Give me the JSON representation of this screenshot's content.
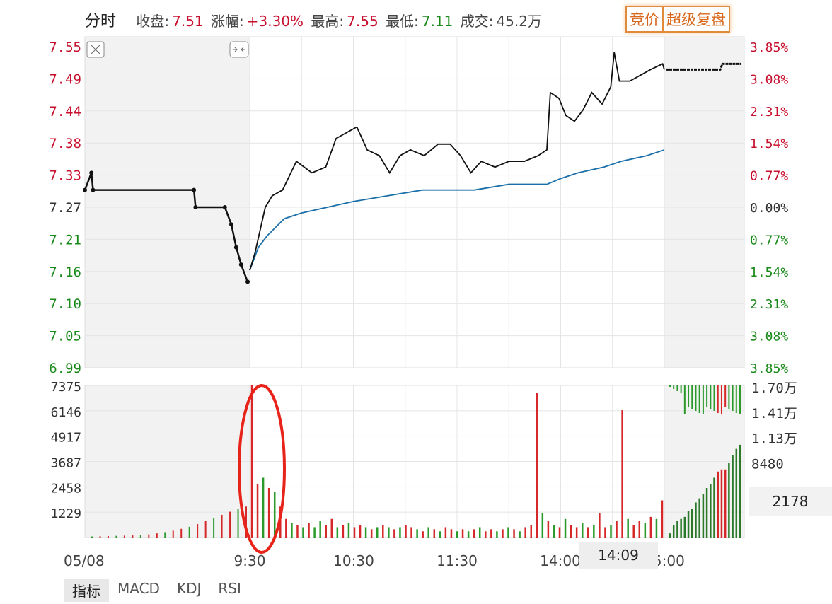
{
  "header": {
    "title": "分时",
    "close_label": "收盘:",
    "close": "7.51",
    "change_label": "涨幅:",
    "change": "+3.30%",
    "high_label": "最高:",
    "high": "7.55",
    "low_label": "最低:",
    "low": "7.11",
    "volume_label": "成交:",
    "volume": "45.2万"
  },
  "buttons": {
    "auction": "竞价",
    "replay": "超级复盘"
  },
  "tabs": [
    "指标",
    "MACD",
    "KDJ",
    "RSI"
  ],
  "cursor": {
    "time": "14:09",
    "value": "2178"
  },
  "colors": {
    "up": "#d62828",
    "down": "#2a9a2a",
    "price": "#111111",
    "avg": "#1a6fa8",
    "highlight": "#e8241a"
  },
  "chart_data": [
    {
      "type": "line",
      "title": "",
      "price_ticks_left": [
        "7.55",
        "7.49",
        "7.44",
        "7.38",
        "7.33",
        "7.27",
        "7.21",
        "7.16",
        "7.10",
        "7.05",
        "6.99"
      ],
      "pct_ticks_right": [
        "3.85%",
        "3.08%",
        "2.31%",
        "1.54%",
        "0.77%",
        "0.00%",
        "0.77%",
        "1.54%",
        "2.31%",
        "3.08%",
        "3.85%"
      ],
      "ylim": [
        6.99,
        7.55
      ],
      "prev_close": 7.27,
      "x_ticks": [
        "05/08",
        "9:30",
        "10:30",
        "11:30",
        "14:00",
        "15:00"
      ],
      "auction_price": {
        "pos": [
          0,
          0.04,
          0.05,
          0.67,
          0.68,
          0.86,
          0.9,
          0.93,
          0.96,
          1.0
        ],
        "values": [
          7.3,
          7.33,
          7.3,
          7.3,
          7.27,
          7.27,
          7.24,
          7.2,
          7.17,
          7.14
        ]
      },
      "price": {
        "minute": [
          0,
          3,
          9,
          13,
          19,
          27,
          36,
          44,
          50,
          56,
          62,
          68,
          75,
          81,
          87,
          93,
          101,
          109,
          116,
          122,
          128,
          134,
          142,
          150,
          159,
          167,
          172,
          174,
          179,
          183,
          188,
          193,
          198,
          204,
          209,
          211,
          214,
          220,
          226,
          232,
          239,
          240
        ],
        "values": [
          7.16,
          7.19,
          7.27,
          7.29,
          7.3,
          7.35,
          7.33,
          7.34,
          7.39,
          7.4,
          7.41,
          7.37,
          7.36,
          7.33,
          7.36,
          7.37,
          7.36,
          7.38,
          7.38,
          7.36,
          7.33,
          7.35,
          7.34,
          7.35,
          7.35,
          7.36,
          7.37,
          7.47,
          7.46,
          7.43,
          7.42,
          7.44,
          7.47,
          7.45,
          7.48,
          7.54,
          7.49,
          7.49,
          7.5,
          7.51,
          7.52,
          7.51
        ]
      },
      "avg_price": {
        "minute": [
          0,
          5,
          10,
          20,
          30,
          45,
          60,
          80,
          100,
          130,
          150,
          172,
          180,
          190,
          205,
          215,
          230,
          240
        ],
        "values": [
          7.16,
          7.2,
          7.22,
          7.25,
          7.26,
          7.27,
          7.28,
          7.29,
          7.3,
          7.3,
          7.31,
          7.31,
          7.32,
          7.33,
          7.34,
          7.35,
          7.36,
          7.37
        ]
      },
      "post_price": {
        "pos": [
          0,
          0.72,
          0.75,
          1.0
        ],
        "values": [
          7.51,
          7.51,
          7.52,
          7.52
        ]
      }
    },
    {
      "type": "bar",
      "title": "",
      "ylim": [
        0,
        7375
      ],
      "y_ticks_left": [
        "7375",
        "6146",
        "4917",
        "3687",
        "2458",
        "1229"
      ],
      "y_ticks_right": [
        "1.70万",
        "1.41万",
        "1.13万",
        "8480"
      ],
      "auction_volume": [
        50,
        60,
        70,
        80,
        90,
        100,
        120,
        150,
        200,
        260,
        330,
        420,
        520,
        650,
        800,
        950,
        1100,
        1250,
        1400,
        1500
      ],
      "volume": [
        7375,
        2600,
        2900,
        2400,
        2200,
        1500,
        900,
        700,
        600,
        500,
        700,
        500,
        800,
        600,
        900,
        500,
        600,
        700,
        500,
        600,
        500,
        400,
        500,
        600,
        500,
        400,
        500,
        600,
        500,
        400,
        300,
        500,
        400,
        300,
        500,
        400,
        300,
        400,
        300,
        400,
        500,
        300,
        400,
        300,
        400,
        500,
        400,
        300,
        500,
        600,
        7000,
        1200,
        800,
        600,
        500,
        900,
        600,
        500,
        700,
        500,
        600,
        1200,
        500,
        600,
        800,
        6200,
        900,
        600,
        800,
        700,
        1000,
        900,
        1800
      ],
      "volume_up": [
        1,
        1,
        0,
        1,
        0,
        1,
        1,
        0,
        1,
        0,
        1,
        0,
        0,
        1,
        1,
        0,
        1,
        0,
        1,
        1,
        0,
        1,
        0,
        1,
        0,
        1,
        0,
        1,
        1,
        0,
        1,
        0,
        1,
        0,
        1,
        1,
        0,
        1,
        0,
        1,
        0,
        1,
        1,
        0,
        1,
        0,
        1,
        0,
        1,
        1,
        1,
        0,
        1,
        0,
        1,
        0,
        1,
        1,
        0,
        1,
        0,
        1,
        1,
        0,
        1,
        1,
        0,
        1,
        1,
        0,
        1,
        0,
        1
      ],
      "post_volume": [
        200,
        600,
        800,
        900,
        1000,
        1300,
        1400,
        1700,
        1900,
        2100,
        2400,
        2600,
        2900,
        3200,
        3300,
        3300,
        3600,
        4000,
        4300,
        4500
      ],
      "post_volume_up": [
        0,
        0,
        0,
        0,
        0,
        0,
        0,
        0,
        0,
        0,
        0,
        0,
        0,
        1,
        1,
        1,
        0,
        0,
        0,
        0
      ]
    }
  ]
}
